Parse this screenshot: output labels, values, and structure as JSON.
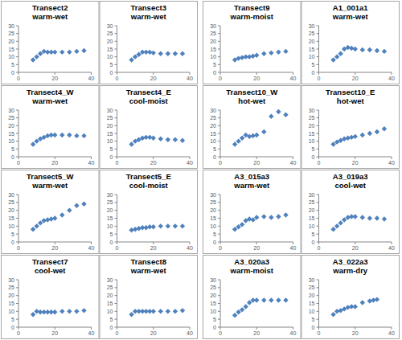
{
  "chart_data": [
    {
      "type": "scatter",
      "title": "Transect2",
      "subtitle": "warm-wet",
      "x": [
        8,
        10,
        12,
        14,
        16,
        18,
        20,
        24,
        28,
        32,
        36
      ],
      "values": [
        8,
        10,
        12,
        13.5,
        13,
        13,
        13,
        13,
        13,
        13.5,
        14
      ],
      "xlim": [
        0,
        40
      ],
      "ylim": [
        0,
        30
      ],
      "xticks": [
        0,
        20,
        40
      ],
      "yticks": [
        0,
        5,
        10,
        15,
        20,
        25,
        30
      ],
      "color": "#4f81bd",
      "marker": "diamond"
    },
    {
      "type": "scatter",
      "title": "Transect3",
      "subtitle": "warm-wet",
      "x": [
        8,
        10,
        12,
        14,
        16,
        18,
        20,
        24,
        28,
        32,
        36
      ],
      "values": [
        8,
        10,
        11.5,
        13,
        13,
        13,
        12.5,
        12,
        12,
        12,
        12
      ],
      "xlim": [
        0,
        40
      ],
      "ylim": [
        0,
        30
      ],
      "xticks": [
        0,
        20,
        40
      ],
      "yticks": [
        0,
        5,
        10,
        15,
        20,
        25,
        30
      ],
      "color": "#4f81bd",
      "marker": "diamond"
    },
    {
      "type": "scatter",
      "title": "Transect9",
      "subtitle": "warm-moist",
      "x": [
        8,
        10,
        12,
        14,
        16,
        18,
        20,
        24,
        28,
        32,
        36
      ],
      "values": [
        8,
        9,
        9.5,
        10,
        10,
        10.5,
        11,
        12,
        12.5,
        13,
        13.5
      ],
      "xlim": [
        0,
        40
      ],
      "ylim": [
        0,
        30
      ],
      "xticks": [
        0,
        20,
        40
      ],
      "yticks": [
        0,
        5,
        10,
        15,
        20,
        25,
        30
      ],
      "color": "#4f81bd",
      "marker": "diamond"
    },
    {
      "type": "scatter",
      "title": "A1_001a1",
      "subtitle": "warm-wet",
      "x": [
        8,
        10,
        12,
        14,
        16,
        18,
        20,
        24,
        28,
        32,
        36
      ],
      "values": [
        8,
        10,
        12,
        15,
        16,
        15.5,
        15,
        14.5,
        14.5,
        14,
        13.5
      ],
      "xlim": [
        0,
        40
      ],
      "ylim": [
        0,
        30
      ],
      "xticks": [
        0,
        20,
        40
      ],
      "yticks": [
        0,
        5,
        10,
        15,
        20,
        25,
        30
      ],
      "color": "#4f81bd",
      "marker": "diamond"
    },
    {
      "type": "scatter",
      "title": "Transect4_W",
      "subtitle": "warm-wet",
      "x": [
        8,
        10,
        12,
        14,
        16,
        18,
        20,
        24,
        28,
        32,
        36
      ],
      "values": [
        8,
        10,
        11.5,
        12.5,
        13.5,
        14,
        14,
        14,
        14,
        13.5,
        13.5
      ],
      "xlim": [
        0,
        40
      ],
      "ylim": [
        0,
        30
      ],
      "xticks": [
        0,
        20,
        40
      ],
      "yticks": [
        0,
        5,
        10,
        15,
        20,
        25,
        30
      ],
      "color": "#4f81bd",
      "marker": "diamond"
    },
    {
      "type": "scatter",
      "title": "Transect4_E",
      "subtitle": "cool-moist",
      "x": [
        8,
        10,
        12,
        14,
        16,
        18,
        20,
        24,
        28,
        32,
        36
      ],
      "values": [
        8,
        10,
        11,
        12,
        12.5,
        12.5,
        12,
        11.5,
        11,
        11,
        10.5
      ],
      "xlim": [
        0,
        40
      ],
      "ylim": [
        0,
        30
      ],
      "xticks": [
        0,
        20,
        40
      ],
      "yticks": [
        0,
        5,
        10,
        15,
        20,
        25,
        30
      ],
      "color": "#4f81bd",
      "marker": "diamond"
    },
    {
      "type": "scatter",
      "title": "Transect10_W",
      "subtitle": "hot-wet",
      "x": [
        8,
        10,
        12,
        14,
        16,
        18,
        20,
        24,
        28,
        32,
        36
      ],
      "values": [
        8,
        10,
        12,
        14,
        13,
        13.5,
        14,
        16,
        26,
        29,
        27
      ],
      "xlim": [
        0,
        40
      ],
      "ylim": [
        0,
        30
      ],
      "xticks": [
        0,
        20,
        40
      ],
      "yticks": [
        0,
        5,
        10,
        15,
        20,
        25,
        30
      ],
      "color": "#4f81bd",
      "marker": "diamond"
    },
    {
      "type": "scatter",
      "title": "Transect10_E",
      "subtitle": "hot-wet",
      "x": [
        8,
        10,
        12,
        14,
        16,
        18,
        20,
        24,
        28,
        32,
        36
      ],
      "values": [
        8,
        9.5,
        10.5,
        11.5,
        12,
        12.5,
        13,
        14,
        15,
        16,
        18
      ],
      "xlim": [
        0,
        40
      ],
      "ylim": [
        0,
        30
      ],
      "xticks": [
        0,
        20,
        40
      ],
      "yticks": [
        0,
        5,
        10,
        15,
        20,
        25,
        30
      ],
      "color": "#4f81bd",
      "marker": "diamond"
    },
    {
      "type": "scatter",
      "title": "Transect5_W",
      "subtitle": "warm-wet",
      "x": [
        8,
        10,
        12,
        14,
        16,
        18,
        20,
        24,
        28,
        32,
        36
      ],
      "values": [
        8,
        10,
        12,
        13.5,
        14,
        14.5,
        15,
        17,
        20,
        23,
        24
      ],
      "xlim": [
        0,
        40
      ],
      "ylim": [
        0,
        30
      ],
      "xticks": [
        0,
        20,
        40
      ],
      "yticks": [
        0,
        5,
        10,
        15,
        20,
        25,
        30
      ],
      "color": "#4f81bd",
      "marker": "diamond"
    },
    {
      "type": "scatter",
      "title": "Transect5_E",
      "subtitle": "cool-moist",
      "x": [
        8,
        10,
        12,
        14,
        16,
        18,
        20,
        24,
        28,
        32,
        36
      ],
      "values": [
        7.5,
        8,
        8.5,
        9,
        9,
        9.5,
        9.5,
        10,
        10,
        10,
        10
      ],
      "xlim": [
        0,
        40
      ],
      "ylim": [
        0,
        30
      ],
      "xticks": [
        0,
        20,
        40
      ],
      "yticks": [
        0,
        5,
        10,
        15,
        20,
        25,
        30
      ],
      "color": "#4f81bd",
      "marker": "diamond"
    },
    {
      "type": "scatter",
      "title": "A3_015a3",
      "subtitle": "warm-wet",
      "x": [
        8,
        10,
        12,
        14,
        16,
        18,
        20,
        24,
        28,
        32,
        36
      ],
      "values": [
        8,
        9.5,
        11,
        13.5,
        14.5,
        14,
        15.5,
        16,
        15.5,
        16,
        17
      ],
      "xlim": [
        0,
        40
      ],
      "ylim": [
        0,
        30
      ],
      "xticks": [
        0,
        20,
        40
      ],
      "yticks": [
        0,
        5,
        10,
        15,
        20,
        25,
        30
      ],
      "color": "#4f81bd",
      "marker": "diamond"
    },
    {
      "type": "scatter",
      "title": "A3_019a3",
      "subtitle": "cool-wet",
      "x": [
        8,
        10,
        12,
        14,
        16,
        18,
        20,
        24,
        28,
        32,
        36
      ],
      "values": [
        8,
        10,
        12,
        14,
        15.5,
        16,
        16,
        15.5,
        15,
        15,
        14.5
      ],
      "xlim": [
        0,
        40
      ],
      "ylim": [
        0,
        30
      ],
      "xticks": [
        0,
        20,
        40
      ],
      "yticks": [
        0,
        5,
        10,
        15,
        20,
        25,
        30
      ],
      "color": "#4f81bd",
      "marker": "diamond"
    },
    {
      "type": "scatter",
      "title": "Transect7",
      "subtitle": "cool-wet",
      "x": [
        8,
        10,
        12,
        14,
        16,
        18,
        20,
        24,
        28,
        32,
        36
      ],
      "values": [
        8,
        10,
        9.5,
        9.5,
        9.5,
        9.5,
        9.5,
        10,
        10,
        10,
        10.5
      ],
      "xlim": [
        0,
        40
      ],
      "ylim": [
        0,
        30
      ],
      "xticks": [
        0,
        20,
        40
      ],
      "yticks": [
        0,
        5,
        10,
        15,
        20,
        25,
        30
      ],
      "color": "#4f81bd",
      "marker": "diamond"
    },
    {
      "type": "scatter",
      "title": "Transect8",
      "subtitle": "warm-wet",
      "x": [
        8,
        10,
        12,
        14,
        16,
        18,
        20,
        24,
        28,
        32,
        36
      ],
      "values": [
        8,
        10,
        10,
        10,
        10,
        10,
        10,
        10,
        10,
        10,
        10.5
      ],
      "xlim": [
        0,
        40
      ],
      "ylim": [
        0,
        30
      ],
      "xticks": [
        0,
        20,
        40
      ],
      "yticks": [
        0,
        5,
        10,
        15,
        20,
        25,
        30
      ],
      "color": "#4f81bd",
      "marker": "diamond"
    },
    {
      "type": "scatter",
      "title": "A3_020a3",
      "subtitle": "warm-moist",
      "x": [
        8,
        10,
        12,
        14,
        16,
        18,
        20,
        24,
        28,
        32,
        36
      ],
      "values": [
        7.5,
        9.5,
        11,
        13,
        15.5,
        17,
        17,
        17,
        17,
        17,
        17
      ],
      "xlim": [
        0,
        40
      ],
      "ylim": [
        0,
        30
      ],
      "xticks": [
        0,
        20,
        40
      ],
      "yticks": [
        0,
        5,
        10,
        15,
        20,
        25,
        30
      ],
      "color": "#4f81bd",
      "marker": "diamond"
    },
    {
      "type": "scatter",
      "title": "A3_022a3",
      "subtitle": "warm-dry",
      "x": [
        8,
        10,
        12,
        14,
        16,
        18,
        20,
        24,
        28,
        30,
        32
      ],
      "values": [
        8,
        10,
        10.5,
        11.5,
        12.5,
        13,
        13,
        15.5,
        16.5,
        17,
        17.5
      ],
      "xlim": [
        0,
        40
      ],
      "ylim": [
        0,
        30
      ],
      "xticks": [
        0,
        20,
        40
      ],
      "yticks": [
        0,
        5,
        10,
        15,
        20,
        25,
        30
      ],
      "color": "#4f81bd",
      "marker": "diamond"
    }
  ]
}
